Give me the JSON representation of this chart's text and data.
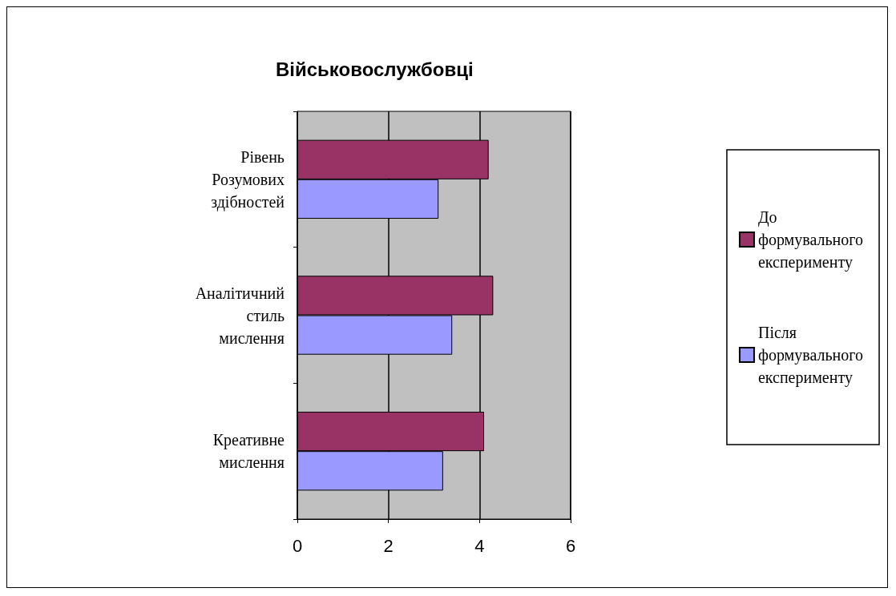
{
  "chart_data": {
    "type": "bar",
    "orientation": "horizontal",
    "title": "Військовослужбовці",
    "categories": [
      "Рівень Розумових здібностей",
      "Аналітичний стиль мислення",
      "Креативне мислення"
    ],
    "series": [
      {
        "name": "До формувального експерименту",
        "color": "#993366",
        "values": [
          4.2,
          4.3,
          4.1
        ]
      },
      {
        "name": "Після формувального експерименту",
        "color": "#9999ff",
        "values": [
          3.1,
          3.4,
          3.2
        ]
      }
    ],
    "xlim": [
      0,
      6
    ],
    "xticks": [
      0,
      2,
      4,
      6
    ],
    "grid": "x",
    "legend": "right"
  }
}
